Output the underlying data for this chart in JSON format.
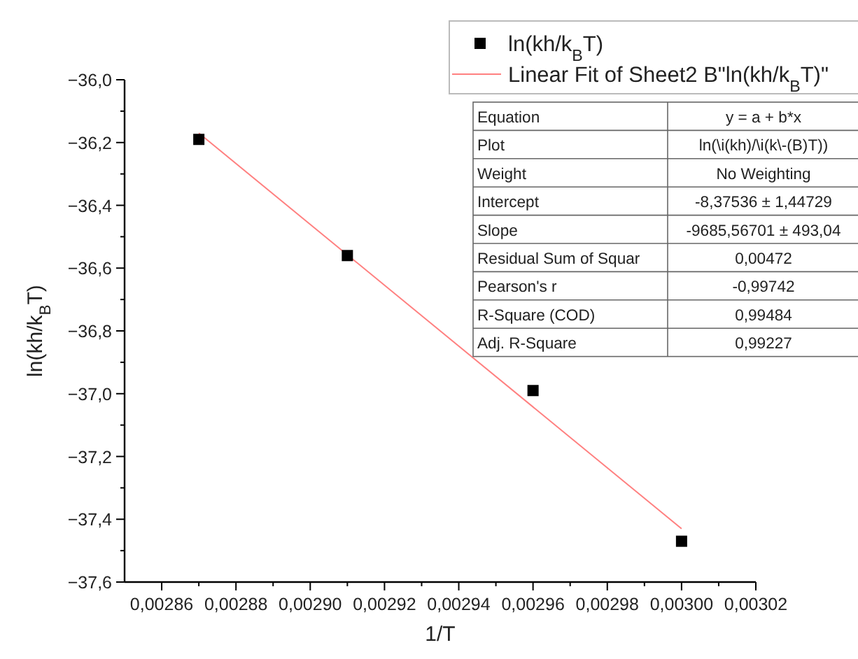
{
  "chart_data": {
    "type": "scatter",
    "xlabel": "1/T",
    "ylabel": "ln(kh/k$_{B}$T)",
    "xlim": [
      0.00285,
      0.00302
    ],
    "xticks": [
      {
        "value": 0.00286,
        "label": "0,00286"
      },
      {
        "value": 0.00287,
        "label": null
      },
      {
        "value": 0.00288,
        "label": "0,00288"
      },
      {
        "value": 0.00289,
        "label": null
      },
      {
        "value": 0.0029,
        "label": "0,00290"
      },
      {
        "value": 0.00291,
        "label": null
      },
      {
        "value": 0.00292,
        "label": "0,00292"
      },
      {
        "value": 0.00293,
        "label": null
      },
      {
        "value": 0.00294,
        "label": "0,00294"
      },
      {
        "value": 0.00295,
        "label": null
      },
      {
        "value": 0.00296,
        "label": "0,00296"
      },
      {
        "value": 0.00297,
        "label": null
      },
      {
        "value": 0.00298,
        "label": "0,00298"
      },
      {
        "value": 0.00299,
        "label": null
      },
      {
        "value": 0.003,
        "label": "0,00300"
      },
      {
        "value": 0.00301,
        "label": null
      },
      {
        "value": 0.00302,
        "label": "0,00302"
      }
    ],
    "ylim": [
      -37.6,
      -36.0
    ],
    "yticks": [
      {
        "value": -37.6,
        "label": "−37,6"
      },
      {
        "value": -37.5,
        "label": null
      },
      {
        "value": -37.4,
        "label": "−37,4"
      },
      {
        "value": -37.3,
        "label": null
      },
      {
        "value": -37.2,
        "label": "−37,2"
      },
      {
        "value": -37.1,
        "label": null
      },
      {
        "value": -37.0,
        "label": "−37,0"
      },
      {
        "value": -36.9,
        "label": null
      },
      {
        "value": -36.8,
        "label": "−36,8"
      },
      {
        "value": -36.7,
        "label": null
      },
      {
        "value": -36.6,
        "label": "−36,6"
      },
      {
        "value": -36.5,
        "label": null
      },
      {
        "value": -36.4,
        "label": "−36,4"
      },
      {
        "value": -36.3,
        "label": null
      },
      {
        "value": -36.2,
        "label": "−36,2"
      },
      {
        "value": -36.1,
        "label": null
      },
      {
        "value": -36.0,
        "label": "−36,0"
      }
    ],
    "grid": false,
    "legend": "top right",
    "series": [
      {
        "name": "ln(kh/k$_{B}$T)",
        "marker": "square",
        "color": "#000000",
        "x": [
          0.00287,
          0.00291,
          0.00296,
          0.003
        ],
        "values": [
          -36.19,
          -36.56,
          -36.99,
          -37.47
        ]
      },
      {
        "name": "Linear Fit of Sheet2 B\"ln(kh/k$_{B}$T)\"",
        "type": "line",
        "marker": "none",
        "color": "#ff8080",
        "x": [
          0.00287,
          0.003
        ],
        "values": [
          -36.17,
          -37.43
        ]
      }
    ],
    "annotations": [
      "Equation",
      "y = a + b*x",
      "Plot",
      "ln(\\i(kh)/\\i(k\\-(B)T))",
      "Weight",
      "No Weighting",
      "Intercept",
      "-8,37536 ± 1,44729",
      "Slope",
      "-9685,56701 ± 493,04",
      "Residual Sum of Squar",
      "0,00472",
      "Pearson's r",
      "-0,99742",
      "R-Square (COD)",
      "0,99484",
      "Adj. R-Square",
      "0,99227"
    ]
  }
}
